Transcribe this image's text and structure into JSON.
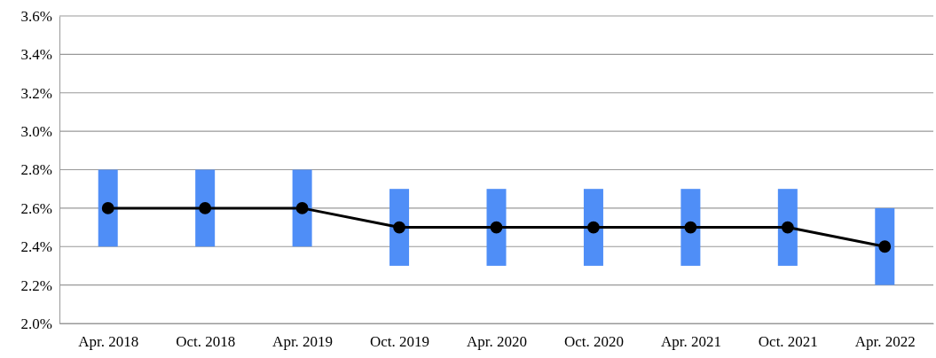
{
  "chart_data": {
    "type": "line",
    "categories": [
      "Apr. 2018",
      "Oct. 2018",
      "Apr. 2019",
      "Oct. 2019",
      "Apr. 2020",
      "Oct. 2020",
      "Apr. 2021",
      "Oct. 2021",
      "Apr. 2022"
    ],
    "series": [
      {
        "type": "bar",
        "color": "#4f8ef7",
        "base": [
          2.4,
          2.4,
          2.4,
          2.3,
          2.3,
          2.3,
          2.3,
          2.3,
          2.2
        ],
        "values": [
          0.4,
          0.4,
          0.4,
          0.4,
          0.4,
          0.4,
          0.4,
          0.4,
          0.4
        ]
      },
      {
        "color": "#000000",
        "values": [
          2.6,
          2.6,
          2.6,
          2.5,
          2.5,
          2.5,
          2.5,
          2.5,
          2.4
        ]
      }
    ],
    "ylim": [
      2.0,
      3.6
    ],
    "yticks": [
      {
        "value": 2.0,
        "label": "2.0%"
      },
      {
        "value": 2.2,
        "label": "2.2%"
      },
      {
        "value": 2.4,
        "label": "2.4%"
      },
      {
        "value": 2.6,
        "label": "2.6%"
      },
      {
        "value": 2.8,
        "label": "2.8%"
      },
      {
        "value": 3.0,
        "label": "3.0%"
      },
      {
        "value": 3.2,
        "label": "3.2%"
      },
      {
        "value": 3.4,
        "label": "3.4%"
      },
      {
        "value": 3.6,
        "label": "3.6%"
      }
    ],
    "grid": "y",
    "marker": "circle",
    "line_style": "solid"
  }
}
